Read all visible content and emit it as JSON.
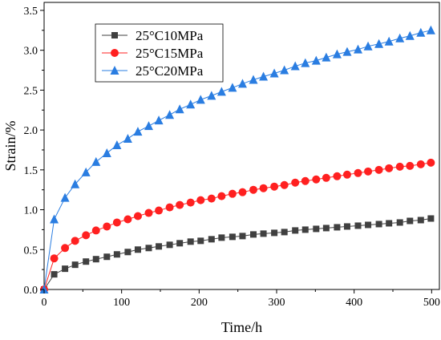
{
  "chart_data": {
    "type": "line",
    "title": "",
    "xlabel": "Time/h",
    "ylabel": "Strain/%",
    "xlim": [
      0,
      510
    ],
    "ylim": [
      0,
      3.6
    ],
    "xticks": [
      0,
      100,
      200,
      300,
      400,
      500
    ],
    "xtick_labels": [
      "0",
      "100",
      "200",
      "300",
      "400",
      "500"
    ],
    "yticks": [
      0,
      0.5,
      1.0,
      1.5,
      2.0,
      2.5,
      3.0,
      3.5
    ],
    "ytick_labels": [
      "0.0",
      "0.5",
      "1.0",
      "1.5",
      "2.0",
      "2.5",
      "3.0",
      "3.5"
    ],
    "grid": false,
    "legend_position": "top-left",
    "x": [
      0,
      13,
      27,
      40,
      54,
      67,
      81,
      94,
      108,
      121,
      135,
      148,
      162,
      175,
      189,
      202,
      216,
      229,
      243,
      256,
      270,
      283,
      297,
      310,
      324,
      337,
      351,
      364,
      378,
      391,
      405,
      418,
      432,
      445,
      459,
      472,
      486,
      499
    ],
    "series": [
      {
        "name": "25°C10MPa",
        "marker": "square",
        "color": "#404040",
        "values": [
          0.0,
          0.19,
          0.26,
          0.31,
          0.35,
          0.38,
          0.41,
          0.44,
          0.47,
          0.5,
          0.52,
          0.54,
          0.56,
          0.58,
          0.6,
          0.61,
          0.63,
          0.65,
          0.66,
          0.67,
          0.69,
          0.7,
          0.71,
          0.72,
          0.74,
          0.75,
          0.76,
          0.77,
          0.78,
          0.79,
          0.8,
          0.81,
          0.82,
          0.83,
          0.84,
          0.86,
          0.87,
          0.89
        ]
      },
      {
        "name": "25°C15MPa",
        "marker": "circle",
        "color": "#ff2020",
        "values": [
          0.0,
          0.39,
          0.52,
          0.61,
          0.68,
          0.74,
          0.79,
          0.84,
          0.88,
          0.92,
          0.96,
          0.99,
          1.03,
          1.06,
          1.09,
          1.12,
          1.14,
          1.17,
          1.2,
          1.22,
          1.25,
          1.27,
          1.29,
          1.31,
          1.34,
          1.36,
          1.38,
          1.4,
          1.42,
          1.44,
          1.46,
          1.48,
          1.5,
          1.52,
          1.54,
          1.55,
          1.57,
          1.59
        ]
      },
      {
        "name": "25°C20MPa",
        "marker": "triangle",
        "color": "#2a7de1",
        "values": [
          0.0,
          0.88,
          1.15,
          1.32,
          1.47,
          1.6,
          1.71,
          1.81,
          1.89,
          1.98,
          2.05,
          2.12,
          2.19,
          2.26,
          2.32,
          2.38,
          2.43,
          2.48,
          2.53,
          2.58,
          2.63,
          2.67,
          2.71,
          2.75,
          2.8,
          2.84,
          2.87,
          2.91,
          2.95,
          2.98,
          3.01,
          3.05,
          3.08,
          3.11,
          3.15,
          3.18,
          3.22,
          3.25
        ]
      }
    ]
  }
}
